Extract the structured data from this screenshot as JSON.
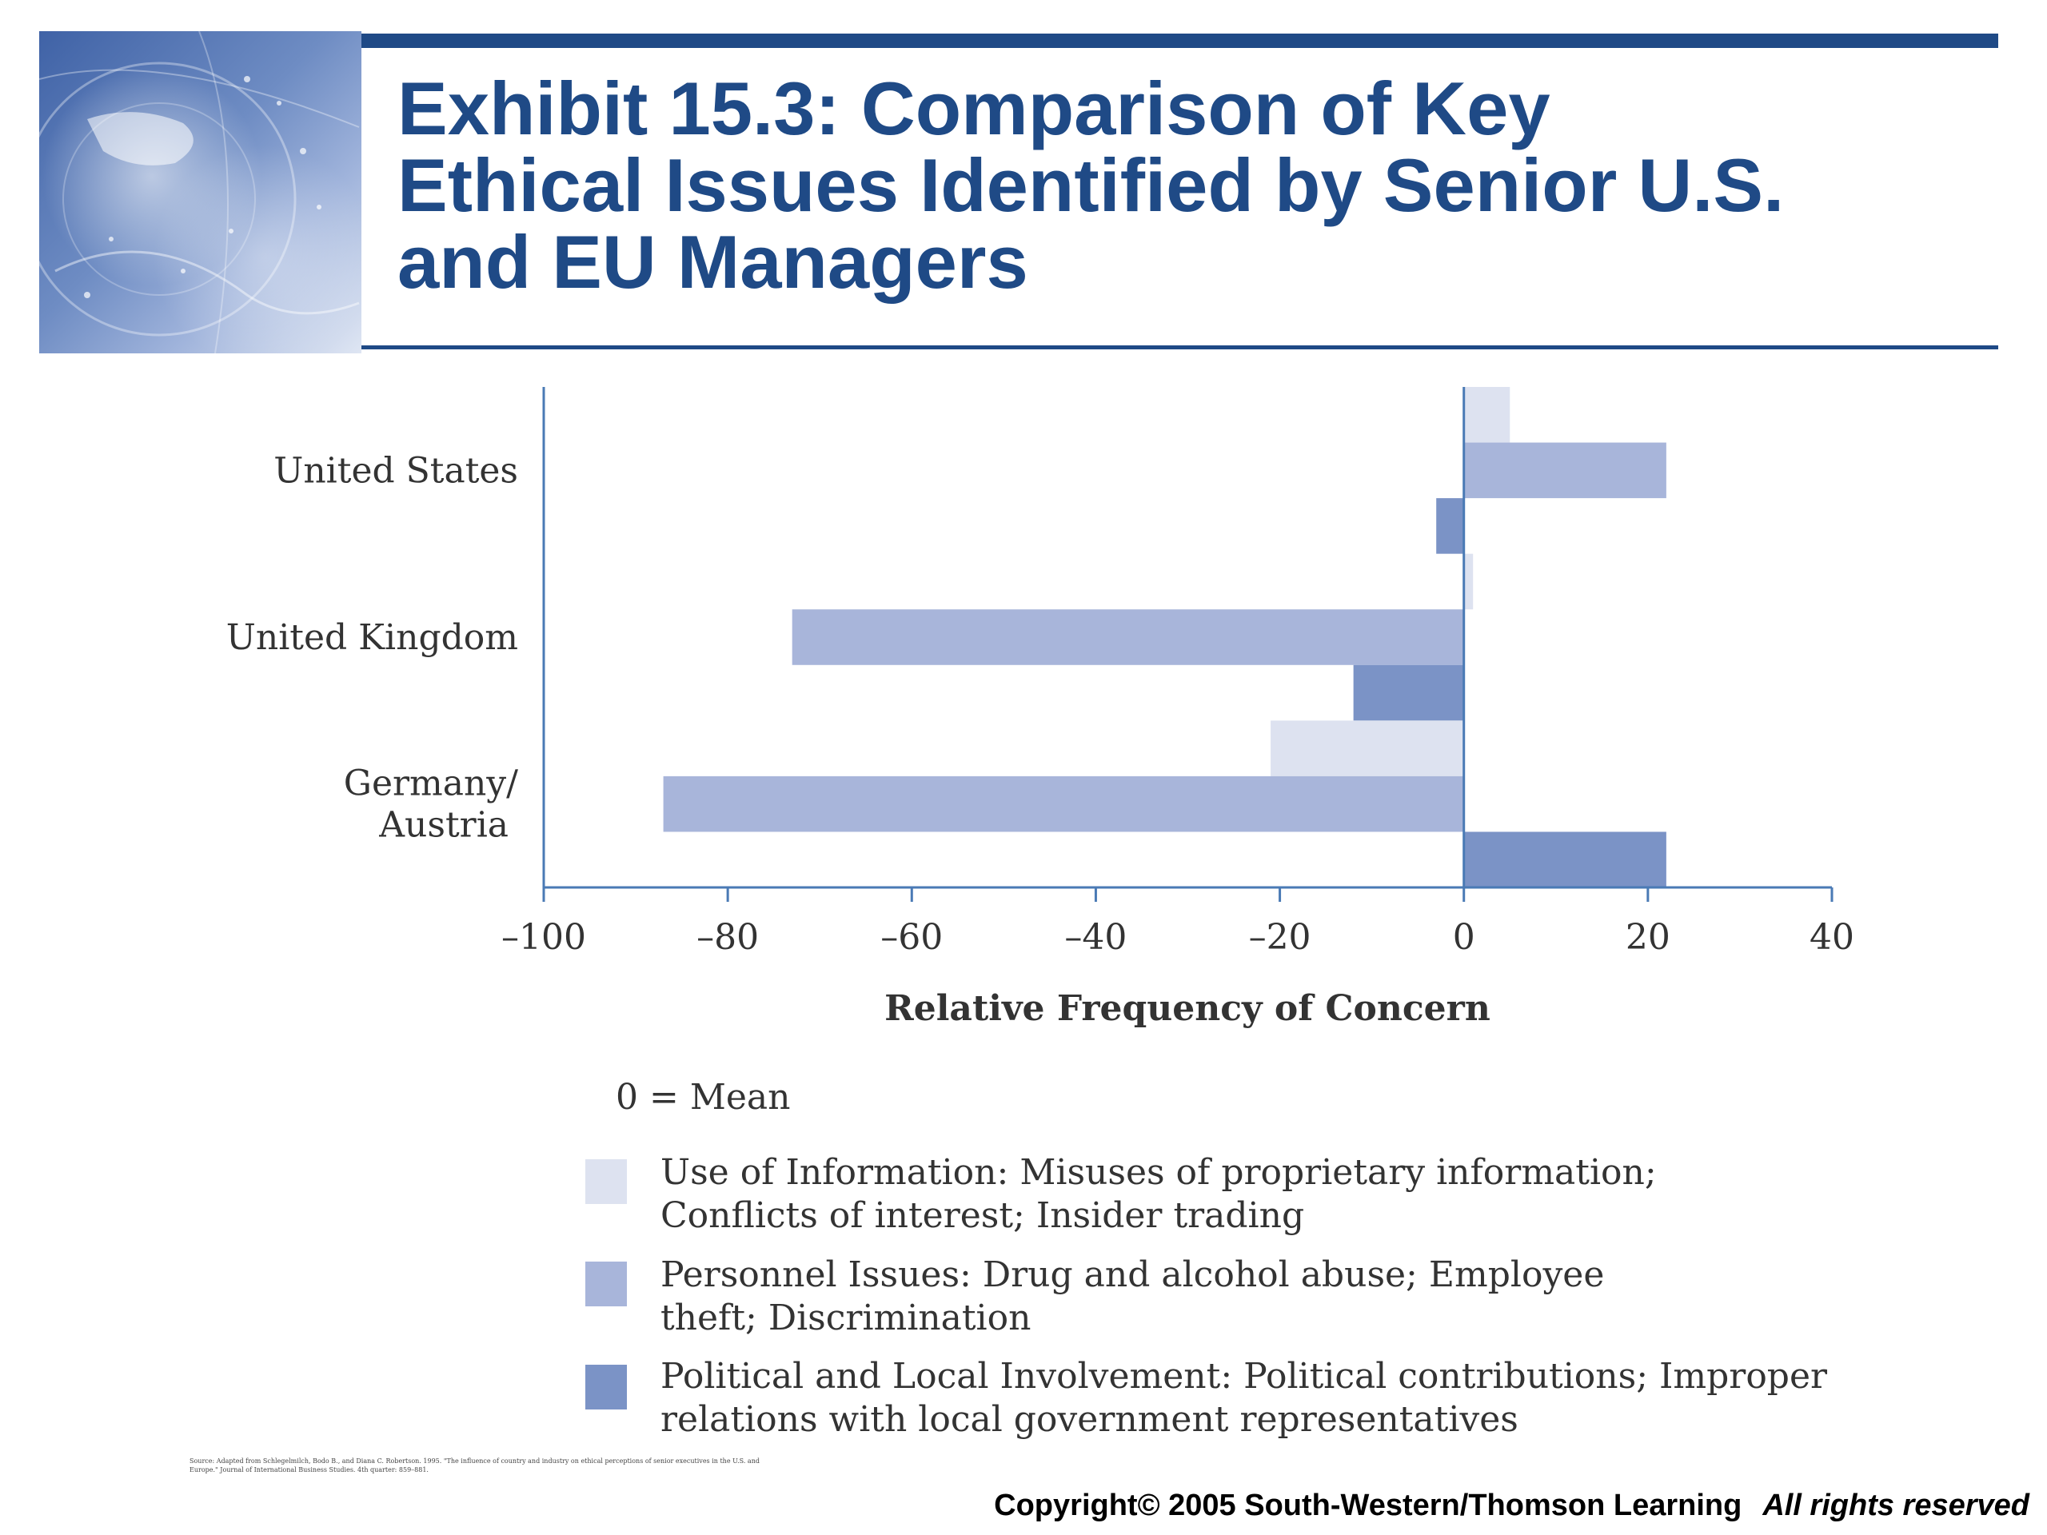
{
  "title_lines": [
    "Exhibit 15.3: Comparison of Key",
    "Ethical Issues Identified by Senior U.S.",
    "and EU Managers"
  ],
  "colors": {
    "brand": "#1f4a86",
    "axis": "#4a7ab5",
    "use_of_information": "#dde2f0",
    "personnel_issues": "#a8b5da",
    "political_involvement": "#7b93c6"
  },
  "chart_data": {
    "type": "bar",
    "orientation": "horizontal",
    "categories": [
      "United States",
      "United Kingdom",
      "Germany/\nAustria"
    ],
    "series": [
      {
        "key": "use_of_information",
        "values": [
          5,
          1,
          -21
        ]
      },
      {
        "key": "personnel_issues",
        "values": [
          22,
          -73,
          -87
        ]
      },
      {
        "key": "political_involvement",
        "values": [
          -3,
          -12,
          22
        ]
      }
    ],
    "xlim": [
      -100,
      40
    ],
    "xticks": [
      -100,
      -80,
      -60,
      -40,
      -20,
      0,
      20,
      40
    ],
    "xtick_labels": [
      "–100",
      "–80",
      "–60",
      "–40",
      "–20",
      "0",
      "20",
      "40"
    ],
    "xlabel": "Relative Frequency of Concern",
    "ylabel": "",
    "grid": false,
    "legend_position": "bottom"
  },
  "legend": {
    "mean_note": "0 = Mean",
    "items": [
      {
        "key": "use_of_information",
        "label": "Use of Information: Misuses of proprietary information;\nConflicts of interest; Insider trading"
      },
      {
        "key": "personnel_issues",
        "label": "Personnel Issues: Drug and alcohol abuse; Employee\ntheft; Discrimination"
      },
      {
        "key": "political_involvement",
        "label": "Political and Local Involvement: Political contributions; Improper\nrelations with local government representatives"
      }
    ]
  },
  "source_note": "Source: Adapted from Schlegelmilch, Bodo B., and Diana C. Robertson. 1995. \"The influence of country and industry on ethical perceptions of senior executives in the U.S. and Europe.\" Journal of International Business Studies. 4th quarter: 859–881.",
  "copyright": {
    "main": "Copyright© 2005 South-Western/Thomson Learning",
    "rights": "All rights reserved"
  }
}
